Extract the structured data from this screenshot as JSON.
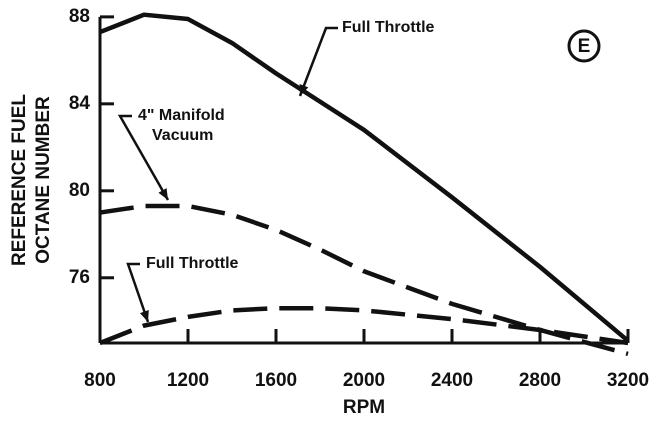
{
  "chart_data": {
    "type": "line",
    "y_label": [
      "REFERENCE FUEL",
      "OCTANE NUMBER"
    ],
    "x_label": "RPM",
    "x": [
      800,
      1000,
      1200,
      1400,
      1600,
      1800,
      2000,
      2400,
      2800,
      3200
    ],
    "series": [
      {
        "color": "#111111",
        "style": "solid",
        "values": [
          87.3,
          88.1,
          87.9,
          86.8,
          85.4,
          84.1,
          82.8,
          79.7,
          76.5,
          73.1
        ]
      },
      {
        "color": "#111111",
        "style": "dashed",
        "values": [
          79.0,
          79.3,
          79.3,
          78.9,
          78.2,
          77.3,
          76.3,
          74.8,
          73.6,
          72.5
        ]
      },
      {
        "color": "#111111",
        "style": "dashed",
        "values": [
          73.0,
          73.8,
          74.2,
          74.5,
          74.6,
          74.6,
          74.5,
          74.1,
          73.6,
          73.0
        ]
      }
    ],
    "annotations": [
      {
        "lines": [
          "Full Throttle"
        ]
      },
      {
        "lines": [
          "4\" Manifold",
          "Vacuum"
        ]
      },
      {
        "lines": [
          "Full Throttle"
        ]
      }
    ],
    "panel_label": "E",
    "xlim": [
      800,
      3200
    ],
    "xticks": [
      800,
      1200,
      1600,
      2000,
      2400,
      2800,
      3200
    ],
    "ylim": [
      73,
      88.5
    ],
    "yticks": [
      76,
      80,
      84,
      88
    ]
  }
}
